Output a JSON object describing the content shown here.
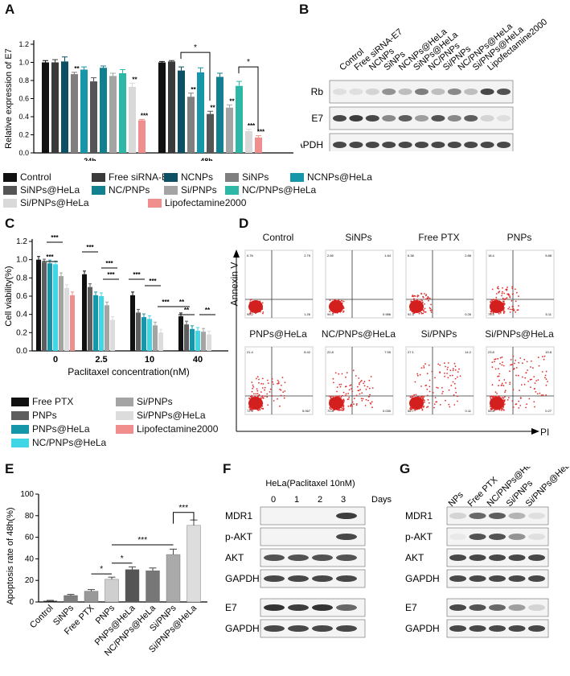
{
  "panels": {
    "A": "A",
    "B": "B",
    "C": "C",
    "D": "D",
    "E": "E",
    "F": "F",
    "G": "G"
  },
  "colors": {
    "control": "#111111",
    "free_sirna": "#3a3a3a",
    "ncnps": "#0d4f63",
    "sinps": "#7f7f7f",
    "ncnps_hela": "#1596a9",
    "sinps_hela": "#555555",
    "nc_pnps": "#13808f",
    "si_pnps": "#a4a4a4",
    "nc_pnps_hela": "#2db7a6",
    "si_pnps_hela": "#d9d9d9",
    "lipo": "#f08d8d"
  },
  "legendA": [
    {
      "label": "Control",
      "color": "#111111"
    },
    {
      "label": "Free siRNA-E7",
      "color": "#3a3a3a"
    },
    {
      "label": "NCNPs",
      "color": "#0d4f63"
    },
    {
      "label": "SiNPs",
      "color": "#7f7f7f"
    },
    {
      "label": "NCNPs@HeLa",
      "color": "#1596a9"
    },
    {
      "label": "SiNPs@HeLa",
      "color": "#555555"
    },
    {
      "label": "NC/PNPs",
      "color": "#13808f"
    },
    {
      "label": "Si/PNPs",
      "color": "#a4a4a4"
    },
    {
      "label": "NC/PNPs@HeLa",
      "color": "#2db7a6"
    },
    {
      "label": "Si/PNPs@HeLa",
      "color": "#d9d9d9"
    },
    {
      "label": "Lipofectamine2000",
      "color": "#f08d8d"
    }
  ],
  "legendC": [
    {
      "label": "Free PTX",
      "color": "#111111"
    },
    {
      "label": "Si/PNPs",
      "color": "#a4a4a4"
    },
    {
      "label": "PNPs",
      "color": "#5e5e5e"
    },
    {
      "label": "Si/PNPs@HeLa",
      "color": "#dcdcdc"
    },
    {
      "label": "PNPs@HeLa",
      "color": "#1596a9"
    },
    {
      "label": "Lipofectamine2000",
      "color": "#f08d8d"
    },
    {
      "label": "NC/PNPs@HeLa",
      "color": "#40d6e6"
    }
  ],
  "chart_data": [
    {
      "id": "A",
      "type": "bar",
      "ylabel": "Relative expression of E7",
      "ylim": [
        0,
        1.2
      ],
      "yticks": [
        "0.0",
        "0.2",
        "0.4",
        "0.6",
        "0.8",
        "1.0",
        "1.2"
      ],
      "categories": [
        "24h",
        "48h"
      ],
      "series": [
        {
          "name": "Control",
          "values": [
            1.0,
            1.0
          ],
          "errors": [
            0.02,
            0.01
          ]
        },
        {
          "name": "Free siRNA-E7",
          "values": [
            1.0,
            1.01
          ],
          "errors": [
            0.03,
            0.01
          ]
        },
        {
          "name": "NCNPs",
          "values": [
            1.01,
            0.91
          ],
          "errors": [
            0.05,
            0.04
          ]
        },
        {
          "name": "SiNPs",
          "values": [
            0.87,
            0.62
          ],
          "errors": [
            0.02,
            0.04
          ]
        },
        {
          "name": "NCNPs@HeLa",
          "values": [
            0.92,
            0.89
          ],
          "errors": [
            0.03,
            0.05
          ]
        },
        {
          "name": "SiNPs@HeLa",
          "values": [
            0.79,
            0.43
          ],
          "errors": [
            0.04,
            0.03
          ]
        },
        {
          "name": "NC/PNPs",
          "values": [
            0.94,
            0.84
          ],
          "errors": [
            0.02,
            0.04
          ]
        },
        {
          "name": "Si/PNPs",
          "values": [
            0.85,
            0.5
          ],
          "errors": [
            0.03,
            0.03
          ]
        },
        {
          "name": "NC/PNPs@HeLa",
          "values": [
            0.88,
            0.74
          ],
          "errors": [
            0.04,
            0.05
          ]
        },
        {
          "name": "Si/PNPs@HeLa",
          "values": [
            0.73,
            0.24
          ],
          "errors": [
            0.04,
            0.02
          ]
        },
        {
          "name": "Lipofectamine2000",
          "values": [
            0.36,
            0.17
          ],
          "errors": [
            0.01,
            0.02
          ]
        }
      ],
      "significance": {
        "24h": [
          "",
          "",
          "",
          "**",
          "",
          "",
          "",
          "",
          "",
          "**",
          "***"
        ],
        "48h": [
          "",
          "",
          "",
          "**",
          "",
          "**",
          "",
          "**",
          "",
          "***",
          "***"
        ]
      },
      "brackets": [
        "*",
        "*"
      ]
    },
    {
      "id": "C",
      "type": "bar",
      "ylabel": "Cell viability(%)",
      "xlabel": "Paclitaxel concentration(nM)",
      "ylim": [
        0,
        1.2
      ],
      "yticks": [
        "0.0",
        "0.2",
        "0.4",
        "0.6",
        "0.8",
        "1.0",
        "1.2"
      ],
      "categories": [
        "0",
        "2.5",
        "10",
        "40"
      ],
      "series": [
        {
          "name": "Free PTX",
          "values": [
            1.0,
            0.84,
            0.61,
            0.38
          ]
        },
        {
          "name": "PNPs",
          "values": [
            0.97,
            0.7,
            0.42,
            0.29
          ]
        },
        {
          "name": "PNPs@HeLa",
          "values": [
            0.96,
            0.61,
            0.37,
            0.24
          ]
        },
        {
          "name": "NC/PNPs@HeLa",
          "values": [
            0.95,
            0.6,
            0.35,
            0.22
          ]
        },
        {
          "name": "Si/PNPs",
          "values": [
            0.82,
            0.5,
            0.28,
            0.21
          ]
        },
        {
          "name": "Si/PNPs@HeLa",
          "values": [
            0.69,
            0.34,
            0.2,
            0.18
          ]
        },
        {
          "name": "Lipofectamine2000",
          "values": [
            0.61,
            0.0,
            0.0,
            0.0
          ]
        }
      ],
      "annotations": [
        "***",
        "***",
        "***",
        "***",
        "***",
        "***",
        "***",
        "***",
        "**",
        "**",
        "**"
      ]
    },
    {
      "id": "E",
      "type": "bar",
      "ylabel": "Apoptosis rate of 48h(%)",
      "ylim": [
        0,
        100
      ],
      "yticks": [
        "0",
        "20",
        "40",
        "60",
        "80",
        "100"
      ],
      "categories": [
        "Control",
        "SiNPs",
        "Free PTX",
        "PNPs",
        "PNPs@HeLa",
        "NC/PNPs@HeLa",
        "Si/PNPs",
        "Si/PNPs@HeLa"
      ],
      "values": [
        1,
        6,
        10,
        21,
        30,
        29,
        44,
        71
      ],
      "errors": [
        0.5,
        1,
        1.5,
        2,
        2.5,
        2.5,
        5,
        5
      ],
      "colors": [
        "#111111",
        "#7f7f7f",
        "#999999",
        "#cfcfcf",
        "#555555",
        "#777777",
        "#aaaaaa",
        "#dddddd"
      ],
      "brackets": [
        "*",
        "*",
        "***",
        "***"
      ]
    }
  ],
  "blotB": {
    "lanes": [
      "Control",
      "Free siRNA-E7",
      "NCNPs",
      "SiNPs",
      "NCNPs@HeLa",
      "SiNPs@HeLa",
      "NC/PNPs",
      "Si/PNPs",
      "NC/PNPs@HeLa",
      "Si/PNPs@HeLa",
      "Lipofectamine2000"
    ],
    "rows": [
      "Rb",
      "E7",
      "GAPDH"
    ]
  },
  "flowD": {
    "y_axis": "Annexin V",
    "x_axis": "PI",
    "plots": [
      {
        "title": "Control",
        "q": [
          "0.76",
          "2.75",
          "95.2",
          "1.26"
        ]
      },
      {
        "title": "SiNPs",
        "q": [
          "2.65",
          "1.84",
          "94.5",
          "0.986"
        ]
      },
      {
        "title": "Free PTX",
        "q": [
          "6.38",
          "2.88",
          "92.3",
          "0.26"
        ]
      },
      {
        "title": "PNPs",
        "q": [
          "18.4",
          "5.88",
          "70.5",
          "5.11"
        ]
      },
      {
        "title": "PNPs@HeLa",
        "q": [
          "21.4",
          "8.42",
          "72.4",
          "5.067"
        ]
      },
      {
        "title": "NC/PNPs@HeLa",
        "q": [
          "22.8",
          "7.55",
          "70.8",
          "0.030"
        ]
      },
      {
        "title": "Si/PNPs",
        "q": [
          "27.1",
          "14.2",
          "56.7",
          "0.11"
        ]
      },
      {
        "title": "Si/PNPs@HeLa",
        "q": [
          "23.8",
          "19.8",
          "55.8",
          "0.27"
        ]
      }
    ]
  },
  "blotF": {
    "header": "HeLa(Paclitaxel 10nM)",
    "days": [
      "0",
      "1",
      "2",
      "3"
    ],
    "days_label": "Days",
    "rows": [
      "MDR1",
      "p-AKT",
      "AKT",
      "GAPDH",
      "E7",
      "GAPDH"
    ]
  },
  "blotG": {
    "lanes": [
      "NPs",
      "Free PTX",
      "NC/PNPs@HeLa",
      "Si/PNPs",
      "Si/PNPs@HeLa"
    ],
    "rows": [
      "MDR1",
      "p-AKT",
      "AKT",
      "GAPDH",
      "E7",
      "GAPDH"
    ]
  }
}
